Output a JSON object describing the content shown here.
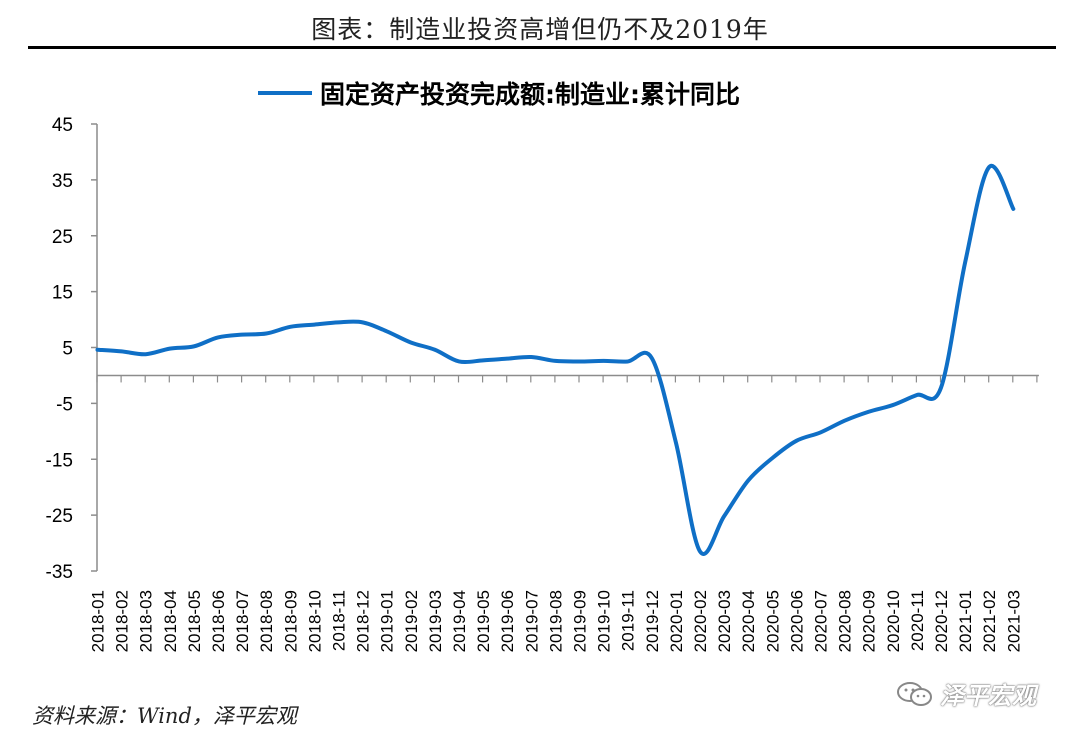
{
  "header": {
    "title": "图表：制造业投资高增但仍不及2019年"
  },
  "footer": {
    "source": "资料来源：Wind，泽平宏观",
    "watermark": "泽平宏观"
  },
  "chart_data": {
    "type": "line",
    "title": "图表：制造业投资高增但仍不及2019年",
    "legend_position": "top-center",
    "grid": false,
    "ylim": [
      -35,
      45
    ],
    "yticks": [
      45,
      35,
      25,
      15,
      5,
      -5,
      -15,
      -25,
      -35
    ],
    "categories": [
      "2018-01",
      "2018-02",
      "2018-03",
      "2018-04",
      "2018-05",
      "2018-06",
      "2018-07",
      "2018-08",
      "2018-09",
      "2018-10",
      "2018-11",
      "2018-12",
      "2019-01",
      "2019-02",
      "2019-03",
      "2019-04",
      "2019-05",
      "2019-06",
      "2019-07",
      "2019-08",
      "2019-09",
      "2019-10",
      "2019-11",
      "2019-12",
      "2020-01",
      "2020-02",
      "2020-03",
      "2020-04",
      "2020-05",
      "2020-06",
      "2020-07",
      "2020-08",
      "2020-09",
      "2020-10",
      "2020-11",
      "2020-12",
      "2021-01",
      "2021-02",
      "2021-03"
    ],
    "series": [
      {
        "name": "固定资产投资完成额:制造业:累计同比",
        "color": "#0f6fc6",
        "x": [
          "2018-01",
          "2018-02",
          "2018-03",
          "2018-04",
          "2018-05",
          "2018-06",
          "2018-07",
          "2018-08",
          "2018-09",
          "2018-10",
          "2018-11",
          "2018-12",
          "2019-01",
          "2019-02",
          "2019-03",
          "2019-04",
          "2019-05",
          "2019-06",
          "2019-07",
          "2019-08",
          "2019-09",
          "2019-10",
          "2019-11",
          "2019-12",
          "2020-01",
          "2020-02",
          "2020-03",
          "2020-04",
          "2020-05",
          "2020-06",
          "2020-07",
          "2020-08",
          "2020-09",
          "2020-10",
          "2020-11",
          "2020-12",
          "2021-01",
          "2021-02",
          "2021-03"
        ],
        "values": [
          4.6,
          4.3,
          3.8,
          4.8,
          5.2,
          6.8,
          7.3,
          7.5,
          8.7,
          9.1,
          9.5,
          9.5,
          7.9,
          5.9,
          4.6,
          2.5,
          2.7,
          3.0,
          3.3,
          2.6,
          2.5,
          2.6,
          2.5,
          3.1,
          -12.0,
          -31.5,
          -25.2,
          -18.8,
          -14.8,
          -11.7,
          -10.2,
          -8.1,
          -6.5,
          -5.3,
          -3.5,
          -2.2,
          20.2,
          37.3,
          29.8
        ]
      }
    ]
  }
}
